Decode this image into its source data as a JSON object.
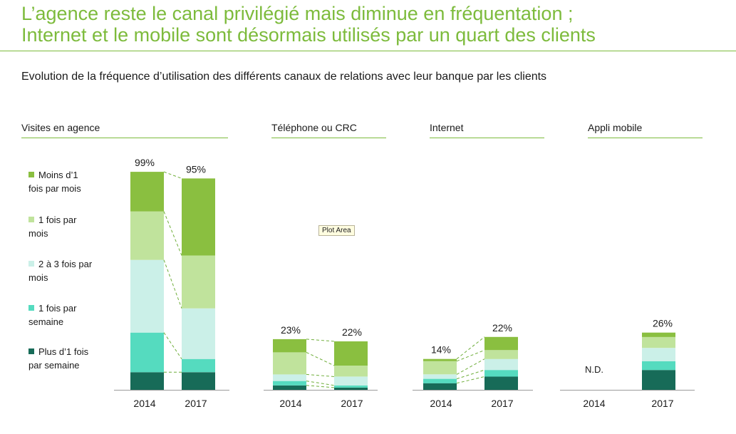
{
  "header": {
    "title_line1": "L’agence reste le canal privilégié mais diminue en fréquentation ;",
    "title_line2": "Internet et le mobile sont désormais utilisés par un quart des clients",
    "subtitle": "Evolution de la fréquence d’utilisation des différents canaux de relations avec leur banque par les clients"
  },
  "tooltip": {
    "label": "Plot Area"
  },
  "colors": {
    "moins_1_mois": "#8abf40",
    "1_mois": "#c0e39c",
    "2_3_mois": "#cbf0e8",
    "1_semaine": "#55dbbf",
    "plus_1_semaine": "#176b58",
    "connector": "#6fae3a",
    "accent": "#7dbb3c"
  },
  "chart_data": {
    "type": "bar",
    "stacked": true,
    "scale_max": 100,
    "series": [
      {
        "key": "plus_1_semaine",
        "name": "Plus d’1 fois par semaine",
        "name_lines": [
          "Plus d’1 fois",
          "par semaine"
        ]
      },
      {
        "key": "1_semaine",
        "name": "1 fois par semaine",
        "name_lines": [
          "1 fois par",
          "semaine"
        ]
      },
      {
        "key": "2_3_mois",
        "name": "2 à 3 fois par mois",
        "name_lines": [
          "2 à 3 fois par",
          "mois"
        ]
      },
      {
        "key": "1_mois",
        "name": "1 fois par mois",
        "name_lines": [
          "1 fois par",
          "mois"
        ]
      },
      {
        "key": "moins_1_mois",
        "name": "Moins d’1 fois par mois",
        "name_lines": [
          "Moins d’1",
          "fois par mois"
        ]
      }
    ],
    "panels": [
      {
        "title": "Visites en agence",
        "categories": [
          "2014",
          "2017"
        ],
        "totals": [
          "99%",
          "95%"
        ],
        "stacks": [
          [
            8,
            18,
            33,
            22,
            18
          ],
          [
            8,
            6,
            23,
            24,
            35
          ]
        ]
      },
      {
        "title": "Téléphone ou CRC",
        "categories": [
          "2014",
          "2017"
        ],
        "totals": [
          "23%",
          "22%"
        ],
        "stacks": [
          [
            2,
            2,
            3,
            10,
            6
          ],
          [
            1,
            1,
            4,
            5,
            11
          ]
        ]
      },
      {
        "title": "Internet",
        "categories": [
          "2014",
          "2017"
        ],
        "totals": [
          "14%",
          "22%"
        ],
        "stacks": [
          [
            3,
            2,
            2,
            6,
            1
          ],
          [
            6,
            3,
            5,
            4,
            6
          ]
        ]
      },
      {
        "title": "Appli mobile",
        "categories": [
          "2014",
          "2017"
        ],
        "totals": [
          "N.D.",
          "26%"
        ],
        "stacks": [
          null,
          [
            9,
            4,
            6,
            5,
            2
          ]
        ]
      }
    ]
  }
}
